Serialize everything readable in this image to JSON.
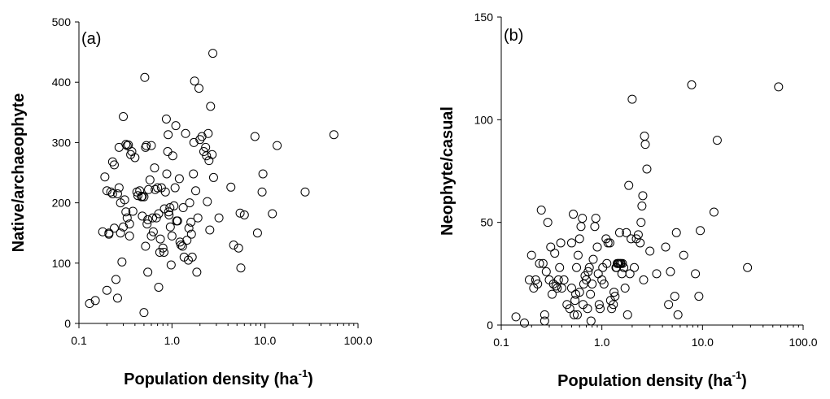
{
  "chart_data": [
    {
      "type": "scatter",
      "panel_label": "(a)",
      "xlabel": "Population density (ha",
      "xlabel_superscript": "-1",
      "xlabel_close": ")",
      "ylabel": "Native/archaeophyte",
      "xscale": "log",
      "xlim": [
        0.1,
        100.0
      ],
      "ylim": [
        0,
        500
      ],
      "xticks": [
        "0.1",
        "1.0",
        "10.0",
        "100.0"
      ],
      "yticks": [
        "0",
        "100",
        "200",
        "300",
        "400",
        "500"
      ],
      "grid": false,
      "legend": "none",
      "marker": "open-circle",
      "points": [
        [
          0.13,
          33
        ],
        [
          0.15,
          38
        ],
        [
          0.2,
          55
        ],
        [
          0.18,
          152
        ],
        [
          0.19,
          243
        ],
        [
          0.2,
          220
        ],
        [
          0.21,
          150
        ],
        [
          0.21,
          148
        ],
        [
          0.22,
          218
        ],
        [
          0.23,
          268
        ],
        [
          0.23,
          215
        ],
        [
          0.24,
          158
        ],
        [
          0.24,
          263
        ],
        [
          0.25,
          73
        ],
        [
          0.26,
          42
        ],
        [
          0.26,
          215
        ],
        [
          0.27,
          292
        ],
        [
          0.27,
          225
        ],
        [
          0.28,
          200
        ],
        [
          0.28,
          150
        ],
        [
          0.29,
          102
        ],
        [
          0.3,
          160
        ],
        [
          0.3,
          343
        ],
        [
          0.31,
          205
        ],
        [
          0.32,
          185
        ],
        [
          0.32,
          297
        ],
        [
          0.33,
          295
        ],
        [
          0.33,
          175
        ],
        [
          0.34,
          296
        ],
        [
          0.35,
          165
        ],
        [
          0.35,
          145
        ],
        [
          0.36,
          280
        ],
        [
          0.37,
          285
        ],
        [
          0.38,
          186
        ],
        [
          0.4,
          275
        ],
        [
          0.42,
          218
        ],
        [
          0.43,
          212
        ],
        [
          0.45,
          220
        ],
        [
          0.47,
          210
        ],
        [
          0.48,
          211
        ],
        [
          0.48,
          178
        ],
        [
          0.5,
          18
        ],
        [
          0.5,
          210
        ],
        [
          0.51,
          408
        ],
        [
          0.52,
          128
        ],
        [
          0.52,
          292
        ],
        [
          0.53,
          295
        ],
        [
          0.54,
          165
        ],
        [
          0.55,
          172
        ],
        [
          0.55,
          85
        ],
        [
          0.56,
          222
        ],
        [
          0.58,
          238
        ],
        [
          0.6,
          145
        ],
        [
          0.6,
          295
        ],
        [
          0.62,
          175
        ],
        [
          0.63,
          152
        ],
        [
          0.65,
          258
        ],
        [
          0.66,
          222
        ],
        [
          0.68,
          175
        ],
        [
          0.7,
          225
        ],
        [
          0.72,
          60
        ],
        [
          0.72,
          182
        ],
        [
          0.74,
          118
        ],
        [
          0.75,
          140
        ],
        [
          0.77,
          225
        ],
        [
          0.8,
          125
        ],
        [
          0.82,
          118
        ],
        [
          0.83,
          190
        ],
        [
          0.85,
          218
        ],
        [
          0.87,
          339
        ],
        [
          0.88,
          248
        ],
        [
          0.9,
          285
        ],
        [
          0.91,
          313
        ],
        [
          0.92,
          185
        ],
        [
          0.93,
          180
        ],
        [
          0.95,
          192
        ],
        [
          0.96,
          160
        ],
        [
          0.98,
          97
        ],
        [
          1.0,
          145
        ],
        [
          1.02,
          278
        ],
        [
          1.05,
          195
        ],
        [
          1.08,
          225
        ],
        [
          1.1,
          328
        ],
        [
          1.12,
          170
        ],
        [
          1.15,
          170
        ],
        [
          1.2,
          240
        ],
        [
          1.22,
          135
        ],
        [
          1.25,
          130
        ],
        [
          1.3,
          128
        ],
        [
          1.32,
          192
        ],
        [
          1.35,
          110
        ],
        [
          1.4,
          315
        ],
        [
          1.45,
          138
        ],
        [
          1.5,
          105
        ],
        [
          1.52,
          158
        ],
        [
          1.55,
          200
        ],
        [
          1.6,
          168
        ],
        [
          1.62,
          148
        ],
        [
          1.65,
          110
        ],
        [
          1.7,
          248
        ],
        [
          1.72,
          300
        ],
        [
          1.75,
          402
        ],
        [
          1.8,
          220
        ],
        [
          1.85,
          85
        ],
        [
          1.9,
          175
        ],
        [
          1.95,
          390
        ],
        [
          2.0,
          305
        ],
        [
          2.1,
          310
        ],
        [
          2.2,
          285
        ],
        [
          2.3,
          292
        ],
        [
          2.35,
          278
        ],
        [
          2.4,
          202
        ],
        [
          2.45,
          315
        ],
        [
          2.5,
          270
        ],
        [
          2.55,
          155
        ],
        [
          2.6,
          360
        ],
        [
          2.7,
          280
        ],
        [
          2.75,
          448
        ],
        [
          2.8,
          242
        ],
        [
          3.2,
          175
        ],
        [
          4.3,
          226
        ],
        [
          4.6,
          130
        ],
        [
          5.2,
          125
        ],
        [
          5.4,
          183
        ],
        [
          5.5,
          92
        ],
        [
          6.0,
          180
        ],
        [
          7.8,
          310
        ],
        [
          8.3,
          150
        ],
        [
          9.3,
          218
        ],
        [
          9.5,
          248
        ],
        [
          12.0,
          182
        ],
        [
          13.5,
          295
        ],
        [
          27.0,
          218
        ],
        [
          55.0,
          313
        ]
      ]
    },
    {
      "type": "scatter",
      "panel_label": "(b)",
      "xlabel": "Population density (ha",
      "xlabel_superscript": "-1",
      "xlabel_close": ")",
      "ylabel": "Neophyte/casual",
      "xscale": "log",
      "xlim": [
        0.1,
        100.0
      ],
      "ylim": [
        0,
        150
      ],
      "xticks": [
        "0.1",
        "1.0",
        "10.0",
        "100.0"
      ],
      "yticks": [
        "0",
        "50",
        "100",
        "150"
      ],
      "grid": false,
      "legend": "none",
      "marker": "open-circle",
      "points": [
        [
          0.14,
          4
        ],
        [
          0.17,
          1
        ],
        [
          0.19,
          22
        ],
        [
          0.2,
          34
        ],
        [
          0.21,
          18
        ],
        [
          0.22,
          22
        ],
        [
          0.23,
          20
        ],
        [
          0.24,
          30
        ],
        [
          0.25,
          56
        ],
        [
          0.26,
          30
        ],
        [
          0.27,
          5
        ],
        [
          0.27,
          2
        ],
        [
          0.28,
          26
        ],
        [
          0.29,
          50
        ],
        [
          0.3,
          22
        ],
        [
          0.31,
          38
        ],
        [
          0.32,
          15
        ],
        [
          0.33,
          20
        ],
        [
          0.34,
          35
        ],
        [
          0.35,
          19
        ],
        [
          0.36,
          18
        ],
        [
          0.37,
          22
        ],
        [
          0.38,
          28
        ],
        [
          0.39,
          40
        ],
        [
          0.4,
          18
        ],
        [
          0.42,
          22
        ],
        [
          0.45,
          10
        ],
        [
          0.48,
          8
        ],
        [
          0.5,
          40
        ],
        [
          0.5,
          18
        ],
        [
          0.52,
          54
        ],
        [
          0.53,
          5
        ],
        [
          0.54,
          12
        ],
        [
          0.55,
          15
        ],
        [
          0.56,
          28
        ],
        [
          0.57,
          5
        ],
        [
          0.58,
          34
        ],
        [
          0.6,
          16
        ],
        [
          0.6,
          42
        ],
        [
          0.62,
          48
        ],
        [
          0.64,
          52
        ],
        [
          0.65,
          10
        ],
        [
          0.66,
          20
        ],
        [
          0.68,
          24
        ],
        [
          0.7,
          22
        ],
        [
          0.72,
          8
        ],
        [
          0.73,
          26
        ],
        [
          0.75,
          28
        ],
        [
          0.77,
          15
        ],
        [
          0.78,
          2
        ],
        [
          0.8,
          20
        ],
        [
          0.82,
          32
        ],
        [
          0.85,
          48
        ],
        [
          0.87,
          52
        ],
        [
          0.9,
          38
        ],
        [
          0.92,
          25
        ],
        [
          0.94,
          10
        ],
        [
          0.96,
          8
        ],
        [
          1.0,
          22
        ],
        [
          1.02,
          28
        ],
        [
          1.05,
          20
        ],
        [
          1.1,
          42
        ],
        [
          1.12,
          30
        ],
        [
          1.15,
          40
        ],
        [
          1.2,
          40
        ],
        [
          1.22,
          12
        ],
        [
          1.25,
          8
        ],
        [
          1.3,
          10
        ],
        [
          1.32,
          16
        ],
        [
          1.35,
          14
        ],
        [
          1.38,
          28
        ],
        [
          1.4,
          28
        ],
        [
          1.42,
          30
        ],
        [
          1.45,
          30
        ],
        [
          1.48,
          30
        ],
        [
          1.5,
          45
        ],
        [
          1.52,
          30
        ],
        [
          1.55,
          30
        ],
        [
          1.58,
          25
        ],
        [
          1.6,
          30
        ],
        [
          1.65,
          28
        ],
        [
          1.7,
          18
        ],
        [
          1.75,
          45
        ],
        [
          1.8,
          5
        ],
        [
          1.85,
          68
        ],
        [
          1.9,
          25
        ],
        [
          1.95,
          42
        ],
        [
          2.0,
          110
        ],
        [
          2.1,
          28
        ],
        [
          2.2,
          42
        ],
        [
          2.3,
          44
        ],
        [
          2.4,
          40
        ],
        [
          2.45,
          50
        ],
        [
          2.5,
          58
        ],
        [
          2.55,
          63
        ],
        [
          2.6,
          22
        ],
        [
          2.65,
          92
        ],
        [
          2.7,
          88
        ],
        [
          2.8,
          76
        ],
        [
          3.0,
          36
        ],
        [
          3.5,
          25
        ],
        [
          4.3,
          38
        ],
        [
          4.6,
          10
        ],
        [
          4.8,
          26
        ],
        [
          5.3,
          14
        ],
        [
          5.5,
          45
        ],
        [
          5.7,
          5
        ],
        [
          6.5,
          34
        ],
        [
          7.8,
          117
        ],
        [
          8.5,
          25
        ],
        [
          9.2,
          14
        ],
        [
          9.5,
          46
        ],
        [
          13.0,
          55
        ],
        [
          14.0,
          90
        ],
        [
          28.0,
          28
        ],
        [
          57.0,
          116
        ]
      ]
    }
  ]
}
